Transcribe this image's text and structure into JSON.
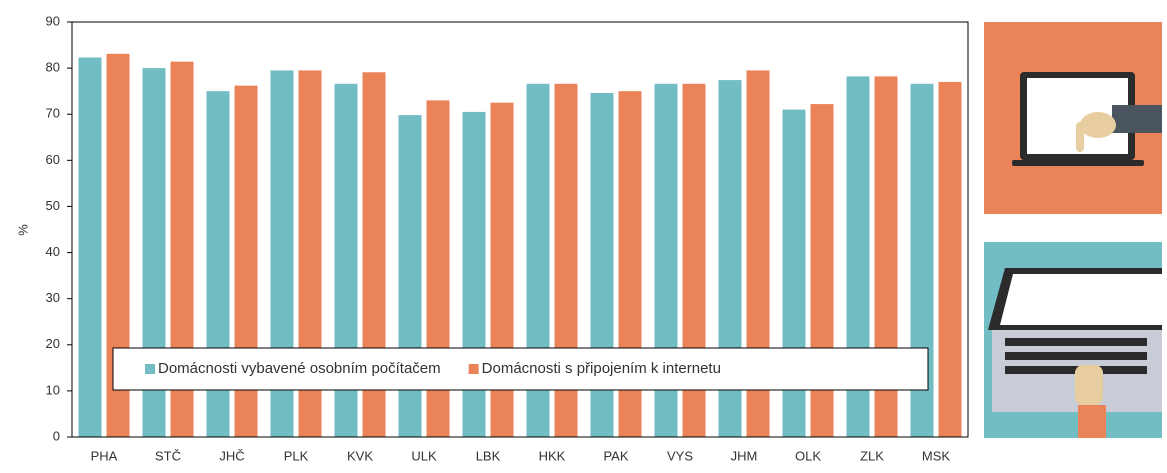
{
  "chart_data": {
    "type": "bar",
    "y_label": "%",
    "categories": [
      "PHA",
      "STČ",
      "JHČ",
      "PLK",
      "KVK",
      "ULK",
      "LBK",
      "HKK",
      "PAK",
      "VYS",
      "JHM",
      "OLK",
      "ZLK",
      "MSK"
    ],
    "series": [
      {
        "name": "Domácnosti vybavené osobním počítačem",
        "color": "#72bcc4",
        "values": [
          82.3,
          80.0,
          75.0,
          79.5,
          76.6,
          69.8,
          70.5,
          76.6,
          74.6,
          76.6,
          77.4,
          71.0,
          78.2,
          76.6
        ]
      },
      {
        "name": "Domácnosti s připojením k internetu",
        "color": "#ea8458",
        "values": [
          83.1,
          81.4,
          76.2,
          79.5,
          79.1,
          73.0,
          72.5,
          76.6,
          75.0,
          76.6,
          79.5,
          72.2,
          78.2,
          77.0
        ]
      }
    ],
    "ylim": [
      0,
      90
    ],
    "yticks": [
      0,
      10,
      20,
      30,
      40,
      50,
      60,
      70,
      80,
      90
    ],
    "grid": false,
    "legend": "lower center"
  }
}
